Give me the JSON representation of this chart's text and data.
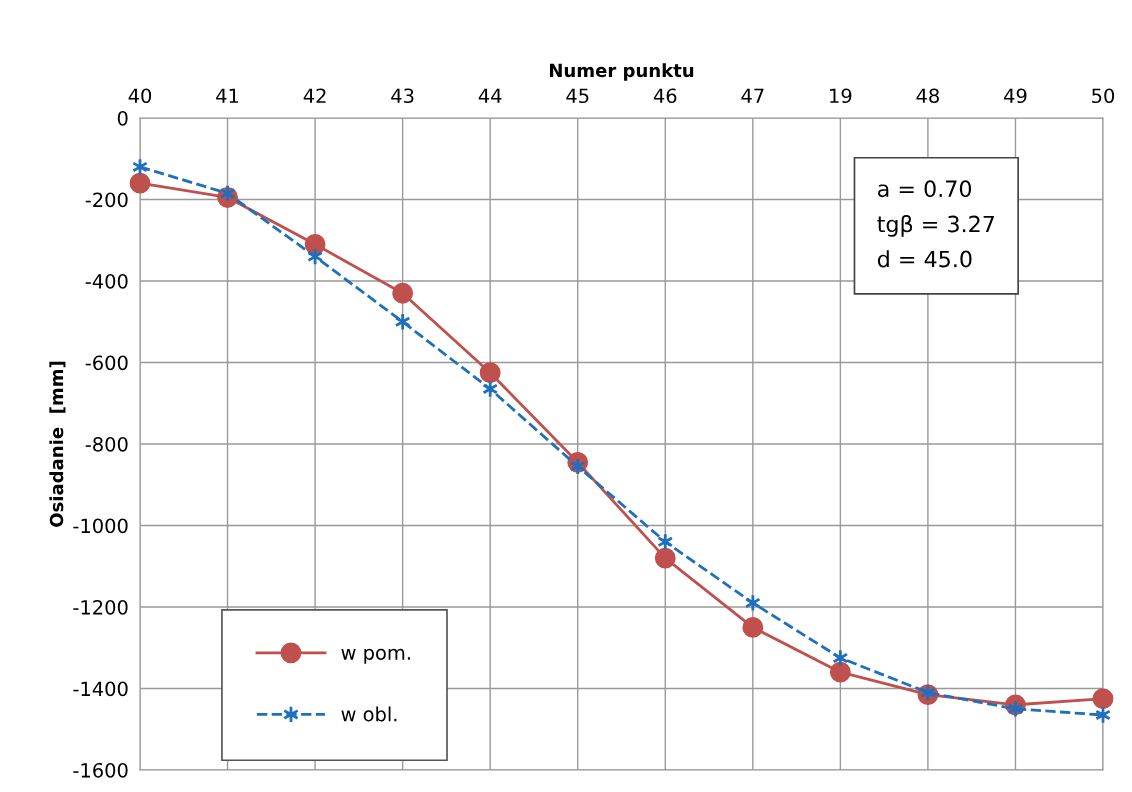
{
  "chart_data": {
    "type": "line",
    "xlabel": "Numer punktu",
    "ylabel": "Osiadanie  [mm]",
    "categories": [
      "40",
      "41",
      "42",
      "43",
      "44",
      "45",
      "46",
      "47",
      "19",
      "48",
      "49",
      "50"
    ],
    "series": [
      {
        "name": "w pom.",
        "color": "#c0504d",
        "marker": "circle",
        "line_style": "solid",
        "values": [
          -160,
          -195,
          -310,
          -430,
          -625,
          -845,
          -1080,
          -1250,
          -1360,
          -1415,
          -1440,
          -1425
        ]
      },
      {
        "name": "w obl.",
        "color": "#1f6fbf",
        "marker": "cross",
        "line_style": "dashed",
        "values": [
          -120,
          -185,
          -340,
          -500,
          -665,
          -855,
          -1040,
          -1190,
          -1325,
          -1410,
          -1450,
          -1465
        ]
      }
    ],
    "ylim": [
      -1600,
      0
    ],
    "yticks": [
      0,
      -200,
      -400,
      -600,
      -800,
      -1000,
      -1200,
      -1400,
      -1600
    ],
    "grid": true,
    "legend": "bottom left",
    "annotations": [
      "a = 0.70",
      "tgβ = 3.27",
      "d = 45.0"
    ]
  }
}
